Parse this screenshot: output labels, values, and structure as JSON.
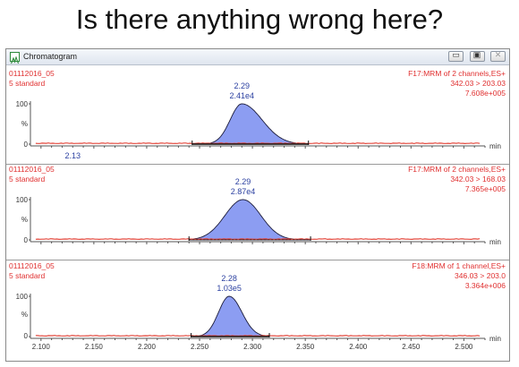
{
  "slide": {
    "title": "Is there anything wrong here?"
  },
  "window": {
    "title": "Chromatogram",
    "buttons": {
      "minimize": "▭",
      "restore": "▣",
      "close": "✕"
    }
  },
  "axis": {
    "x_ticks": [
      "2.100",
      "2.150",
      "2.200",
      "2.250",
      "2.300",
      "2.350",
      "2.400",
      "2.450",
      "2.500"
    ],
    "x_unit": "min",
    "xlim": [
      2.09,
      2.52
    ],
    "y_tick_top": "100",
    "y_tick_mid": "%",
    "y_tick_bottom": "0"
  },
  "colors": {
    "peak_fill": "#8c9df2",
    "baseline": "#e2473c",
    "label_red": "#e03030",
    "label_blue": "#2a3fa0"
  },
  "panels": [
    {
      "sample": "01112016_05",
      "description": "5 standard",
      "function": "F17:MRM of 2 channels,ES+",
      "transition": "342.03 > 203.03",
      "max_intensity": "7.608e+005",
      "peak_rt": "2.29",
      "peak_area": "2.41e4",
      "minor_peak_rt": "2.13",
      "peak": {
        "start": 2.243,
        "apex": 2.29,
        "end": 2.353,
        "sigma_left": 0.011,
        "sigma_right": 0.019,
        "height": 100
      }
    },
    {
      "sample": "01112016_05",
      "description": "5 standard",
      "function": "F17:MRM of 2 channels,ES+",
      "transition": "342.03 > 168.03",
      "max_intensity": "7.365e+005",
      "peak_rt": "2.29",
      "peak_area": "2.87e4",
      "minor_peak_rt": "",
      "peak": {
        "start": 2.24,
        "apex": 2.291,
        "end": 2.355,
        "sigma_left": 0.017,
        "sigma_right": 0.017,
        "height": 100
      }
    },
    {
      "sample": "01112016_05",
      "description": "5 standard",
      "function": "F18:MRM of 1 channel,ES+",
      "transition": "346.03 > 203.0",
      "max_intensity": "3.364e+006",
      "peak_rt": "2.28",
      "peak_area": "1.03e5",
      "minor_peak_rt": "",
      "peak": {
        "start": 2.242,
        "apex": 2.278,
        "end": 2.316,
        "sigma_left": 0.01,
        "sigma_right": 0.012,
        "height": 100
      }
    }
  ]
}
